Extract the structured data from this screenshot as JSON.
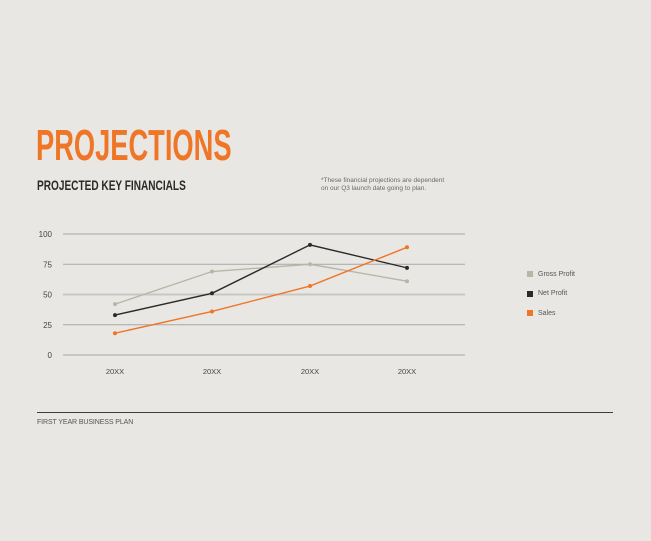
{
  "header": {
    "title": "PROJECTIONS",
    "subtitle": "PROJECTED KEY FINANCIALS",
    "note_lines": [
      "*These financial projections are dependent",
      "on our Q3 launch date going to plan."
    ]
  },
  "footer": {
    "text": "FIRST YEAR BUSINESS PLAN"
  },
  "colors": {
    "accent": "#ef7527",
    "gross_profit": "#b9b6a8",
    "net_profit": "#2b2b2b",
    "sales": "#ef7527",
    "grid": "#a9a7a3",
    "background": "#e9e7e4"
  },
  "chart_data": {
    "type": "line",
    "title": "PROJECTED KEY FINANCIALS",
    "xlabel": "",
    "ylabel": "",
    "categories": [
      "20XX",
      "20XX",
      "20XX",
      "20XX"
    ],
    "ylim": [
      0,
      100
    ],
    "yticks": [
      0,
      25,
      50,
      75,
      100
    ],
    "grid": true,
    "legend_position": "right",
    "series": [
      {
        "name": "Gross Profit",
        "color": "#b9b6a8",
        "values": [
          42,
          69,
          75,
          61
        ]
      },
      {
        "name": "Net Profit",
        "color": "#2b2b2b",
        "values": [
          33,
          51,
          91,
          72
        ]
      },
      {
        "name": "Sales",
        "color": "#ef7527",
        "values": [
          18,
          36,
          57,
          89
        ]
      }
    ]
  }
}
